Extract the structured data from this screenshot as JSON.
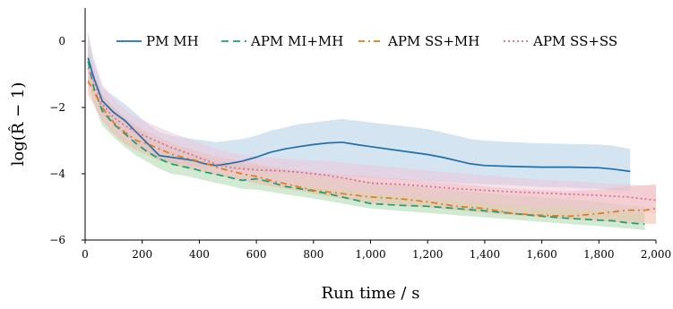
{
  "chart_data": {
    "type": "line",
    "title": "",
    "xlabel": "Run time / s",
    "ylabel": "log(R̂ − 1)",
    "xlim": [
      0,
      2000
    ],
    "ylim": [
      -6,
      1
    ],
    "xticks": [
      0,
      200,
      400,
      600,
      800,
      1000,
      1200,
      1400,
      1600,
      1800,
      2000
    ],
    "xtick_labels": [
      "0",
      "200",
      "400",
      "600",
      "800",
      "1,000",
      "1,200",
      "1,400",
      "1,600",
      "1,800",
      "2,000"
    ],
    "yticks": [
      -6,
      -4,
      -2,
      0
    ],
    "ytick_labels": [
      "−6",
      "−4",
      "−2",
      "0"
    ],
    "grid": false,
    "legend_position": "top",
    "series": [
      {
        "name": "PM MH",
        "color": "#1f6fad",
        "band_color": "#a9cbe3",
        "dash": "solid",
        "x": [
          10,
          30,
          60,
          100,
          140,
          180,
          220,
          260,
          300,
          340,
          380,
          420,
          460,
          500,
          550,
          600,
          650,
          700,
          750,
          800,
          850,
          900,
          950,
          1000,
          1100,
          1200,
          1250,
          1300,
          1350,
          1400,
          1500,
          1600,
          1700,
          1800,
          1850,
          1910
        ],
        "y": [
          -0.5,
          -1.1,
          -1.8,
          -2.15,
          -2.4,
          -2.75,
          -3.1,
          -3.45,
          -3.5,
          -3.55,
          -3.6,
          -3.7,
          -3.75,
          -3.7,
          -3.62,
          -3.5,
          -3.35,
          -3.25,
          -3.18,
          -3.12,
          -3.07,
          -3.05,
          -3.12,
          -3.18,
          -3.3,
          -3.42,
          -3.5,
          -3.6,
          -3.7,
          -3.75,
          -3.78,
          -3.8,
          -3.8,
          -3.82,
          -3.86,
          -3.93
        ],
        "lower": [
          -0.9,
          -1.5,
          -2.2,
          -2.55,
          -2.8,
          -3.1,
          -3.35,
          -3.6,
          -3.65,
          -3.7,
          -3.75,
          -3.82,
          -3.85,
          -3.88,
          -3.9,
          -3.92,
          -3.95,
          -3.97,
          -4.0,
          -4.02,
          -4.05,
          -4.07,
          -4.1,
          -4.12,
          -4.18,
          -4.22,
          -4.25,
          -4.28,
          -4.3,
          -4.32,
          -4.35,
          -4.4,
          -4.42,
          -4.45,
          -4.5,
          -4.52
        ],
        "upper": [
          0.3,
          -0.6,
          -1.4,
          -1.65,
          -1.9,
          -2.2,
          -2.5,
          -2.75,
          -2.85,
          -2.9,
          -2.95,
          -3.0,
          -3.05,
          -3.0,
          -2.95,
          -2.85,
          -2.7,
          -2.6,
          -2.5,
          -2.45,
          -2.4,
          -2.35,
          -2.4,
          -2.45,
          -2.55,
          -2.65,
          -2.75,
          -2.85,
          -2.95,
          -3.0,
          -3.05,
          -3.08,
          -3.1,
          -3.12,
          -3.15,
          -3.25
        ]
      },
      {
        "name": "APM MI+MH",
        "color": "#1a9e75",
        "band_color": "#a8d5a6",
        "dash": "8,5",
        "x": [
          10,
          30,
          60,
          100,
          140,
          180,
          220,
          260,
          300,
          340,
          380,
          420,
          460,
          500,
          550,
          600,
          650,
          700,
          750,
          800,
          850,
          900,
          950,
          1000,
          1100,
          1200,
          1300,
          1400,
          1500,
          1600,
          1700,
          1800,
          1850,
          1900,
          1960
        ],
        "y": [
          -0.6,
          -1.4,
          -2.1,
          -2.5,
          -2.8,
          -3.1,
          -3.35,
          -3.55,
          -3.7,
          -3.78,
          -3.85,
          -3.95,
          -4.02,
          -4.1,
          -4.2,
          -4.15,
          -4.25,
          -4.38,
          -4.45,
          -4.52,
          -4.6,
          -4.7,
          -4.8,
          -4.9,
          -4.95,
          -4.98,
          -5.05,
          -5.12,
          -5.2,
          -5.28,
          -5.35,
          -5.4,
          -5.42,
          -5.48,
          -5.52
        ],
        "lower": [
          -1.2,
          -1.9,
          -2.55,
          -2.9,
          -3.2,
          -3.45,
          -3.65,
          -3.85,
          -4.0,
          -4.05,
          -4.12,
          -4.2,
          -4.28,
          -4.35,
          -4.45,
          -4.48,
          -4.55,
          -4.62,
          -4.68,
          -4.75,
          -4.82,
          -4.9,
          -4.98,
          -5.05,
          -5.12,
          -5.18,
          -5.25,
          -5.32,
          -5.38,
          -5.45,
          -5.52,
          -5.58,
          -5.62,
          -5.65,
          -5.7
        ],
        "upper": [
          -0.1,
          -0.9,
          -1.6,
          -2.0,
          -2.3,
          -2.6,
          -2.85,
          -3.05,
          -3.2,
          -3.3,
          -3.4,
          -3.5,
          -3.58,
          -3.65,
          -3.72,
          -3.75,
          -3.82,
          -3.9,
          -3.95,
          -4.0,
          -4.05,
          -4.12,
          -4.18,
          -4.25,
          -4.35,
          -4.42,
          -4.5,
          -4.58,
          -4.65,
          -4.72,
          -4.78,
          -4.85,
          -4.9,
          -4.95,
          -5.0
        ]
      },
      {
        "name": "APM SS+MH",
        "color": "#e07b1a",
        "band_color": "#efb5a0",
        "dash": "7,4,2,4",
        "x": [
          10,
          30,
          60,
          100,
          140,
          180,
          220,
          260,
          300,
          340,
          380,
          420,
          460,
          500,
          550,
          600,
          650,
          700,
          750,
          800,
          850,
          900,
          950,
          1000,
          1100,
          1200,
          1300,
          1400,
          1500,
          1600,
          1700,
          1800,
          1850,
          1900,
          1960,
          2000
        ],
        "y": [
          -1.2,
          -1.5,
          -2.0,
          -2.45,
          -2.75,
          -3.0,
          -3.1,
          -3.25,
          -3.4,
          -3.5,
          -3.58,
          -3.68,
          -3.8,
          -3.9,
          -4.0,
          -4.08,
          -4.2,
          -4.3,
          -4.4,
          -4.5,
          -4.55,
          -4.6,
          -4.65,
          -4.7,
          -4.75,
          -4.85,
          -4.98,
          -5.05,
          -5.2,
          -5.25,
          -5.28,
          -5.2,
          -5.15,
          -5.1,
          -5.1,
          -5.05
        ],
        "lower": [
          -1.6,
          -1.9,
          -2.4,
          -2.8,
          -3.1,
          -3.3,
          -3.45,
          -3.6,
          -3.7,
          -3.8,
          -3.88,
          -3.95,
          -4.05,
          -4.12,
          -4.2,
          -4.3,
          -4.38,
          -4.45,
          -4.52,
          -4.6,
          -4.68,
          -4.75,
          -4.82,
          -4.88,
          -4.95,
          -5.02,
          -5.1,
          -5.18,
          -5.25,
          -5.32,
          -5.38,
          -5.42,
          -5.45,
          -5.48,
          -5.5,
          -5.52
        ],
        "upper": [
          -0.6,
          -1.0,
          -1.6,
          -2.0,
          -2.3,
          -2.55,
          -2.75,
          -2.9,
          -3.05,
          -3.18,
          -3.28,
          -3.38,
          -3.48,
          -3.55,
          -3.62,
          -3.7,
          -3.78,
          -3.85,
          -3.9,
          -3.95,
          -4.0,
          -4.02,
          -4.05,
          -4.08,
          -4.15,
          -4.22,
          -4.3,
          -4.38,
          -4.45,
          -4.5,
          -4.52,
          -4.48,
          -4.42,
          -4.38,
          -4.35,
          -4.32
        ]
      },
      {
        "name": "APM SS+SS",
        "color": "#d56b9e",
        "band_color": "#f0c4d8",
        "dash": "2,3",
        "x": [
          10,
          30,
          60,
          100,
          140,
          180,
          220,
          260,
          300,
          340,
          380,
          420,
          460,
          500,
          550,
          600,
          650,
          700,
          750,
          800,
          850,
          900,
          950,
          1000,
          1100,
          1200,
          1300,
          1400,
          1500,
          1600,
          1700,
          1800,
          1900,
          2000
        ],
        "y": [
          -0.8,
          -1.2,
          -1.9,
          -2.3,
          -2.55,
          -2.75,
          -2.9,
          -3.05,
          -3.2,
          -3.32,
          -3.45,
          -3.58,
          -3.72,
          -3.8,
          -3.85,
          -3.88,
          -3.9,
          -3.92,
          -3.95,
          -4.0,
          -4.05,
          -4.12,
          -4.2,
          -4.28,
          -4.32,
          -4.38,
          -4.45,
          -4.5,
          -4.55,
          -4.58,
          -4.62,
          -4.65,
          -4.7,
          -4.8
        ],
        "lower": [
          -1.3,
          -1.7,
          -2.35,
          -2.7,
          -2.95,
          -3.15,
          -3.3,
          -3.45,
          -3.58,
          -3.7,
          -3.8,
          -3.9,
          -3.98,
          -4.05,
          -4.12,
          -4.18,
          -4.25,
          -4.3,
          -4.35,
          -4.4,
          -4.45,
          -4.5,
          -4.55,
          -4.6,
          -4.68,
          -4.75,
          -4.82,
          -4.88,
          -4.95,
          -5.0,
          -5.05,
          -5.1,
          -5.15,
          -5.2
        ],
        "upper": [
          0.2,
          -0.5,
          -1.3,
          -1.75,
          -2.05,
          -2.3,
          -2.45,
          -2.6,
          -2.75,
          -2.88,
          -3.0,
          -3.12,
          -3.25,
          -3.35,
          -3.42,
          -3.48,
          -3.52,
          -3.55,
          -3.58,
          -3.6,
          -3.62,
          -3.65,
          -3.7,
          -3.75,
          -3.82,
          -3.9,
          -3.98,
          -4.05,
          -4.12,
          -4.18,
          -4.22,
          -4.28,
          -4.32,
          -4.38
        ]
      }
    ]
  }
}
